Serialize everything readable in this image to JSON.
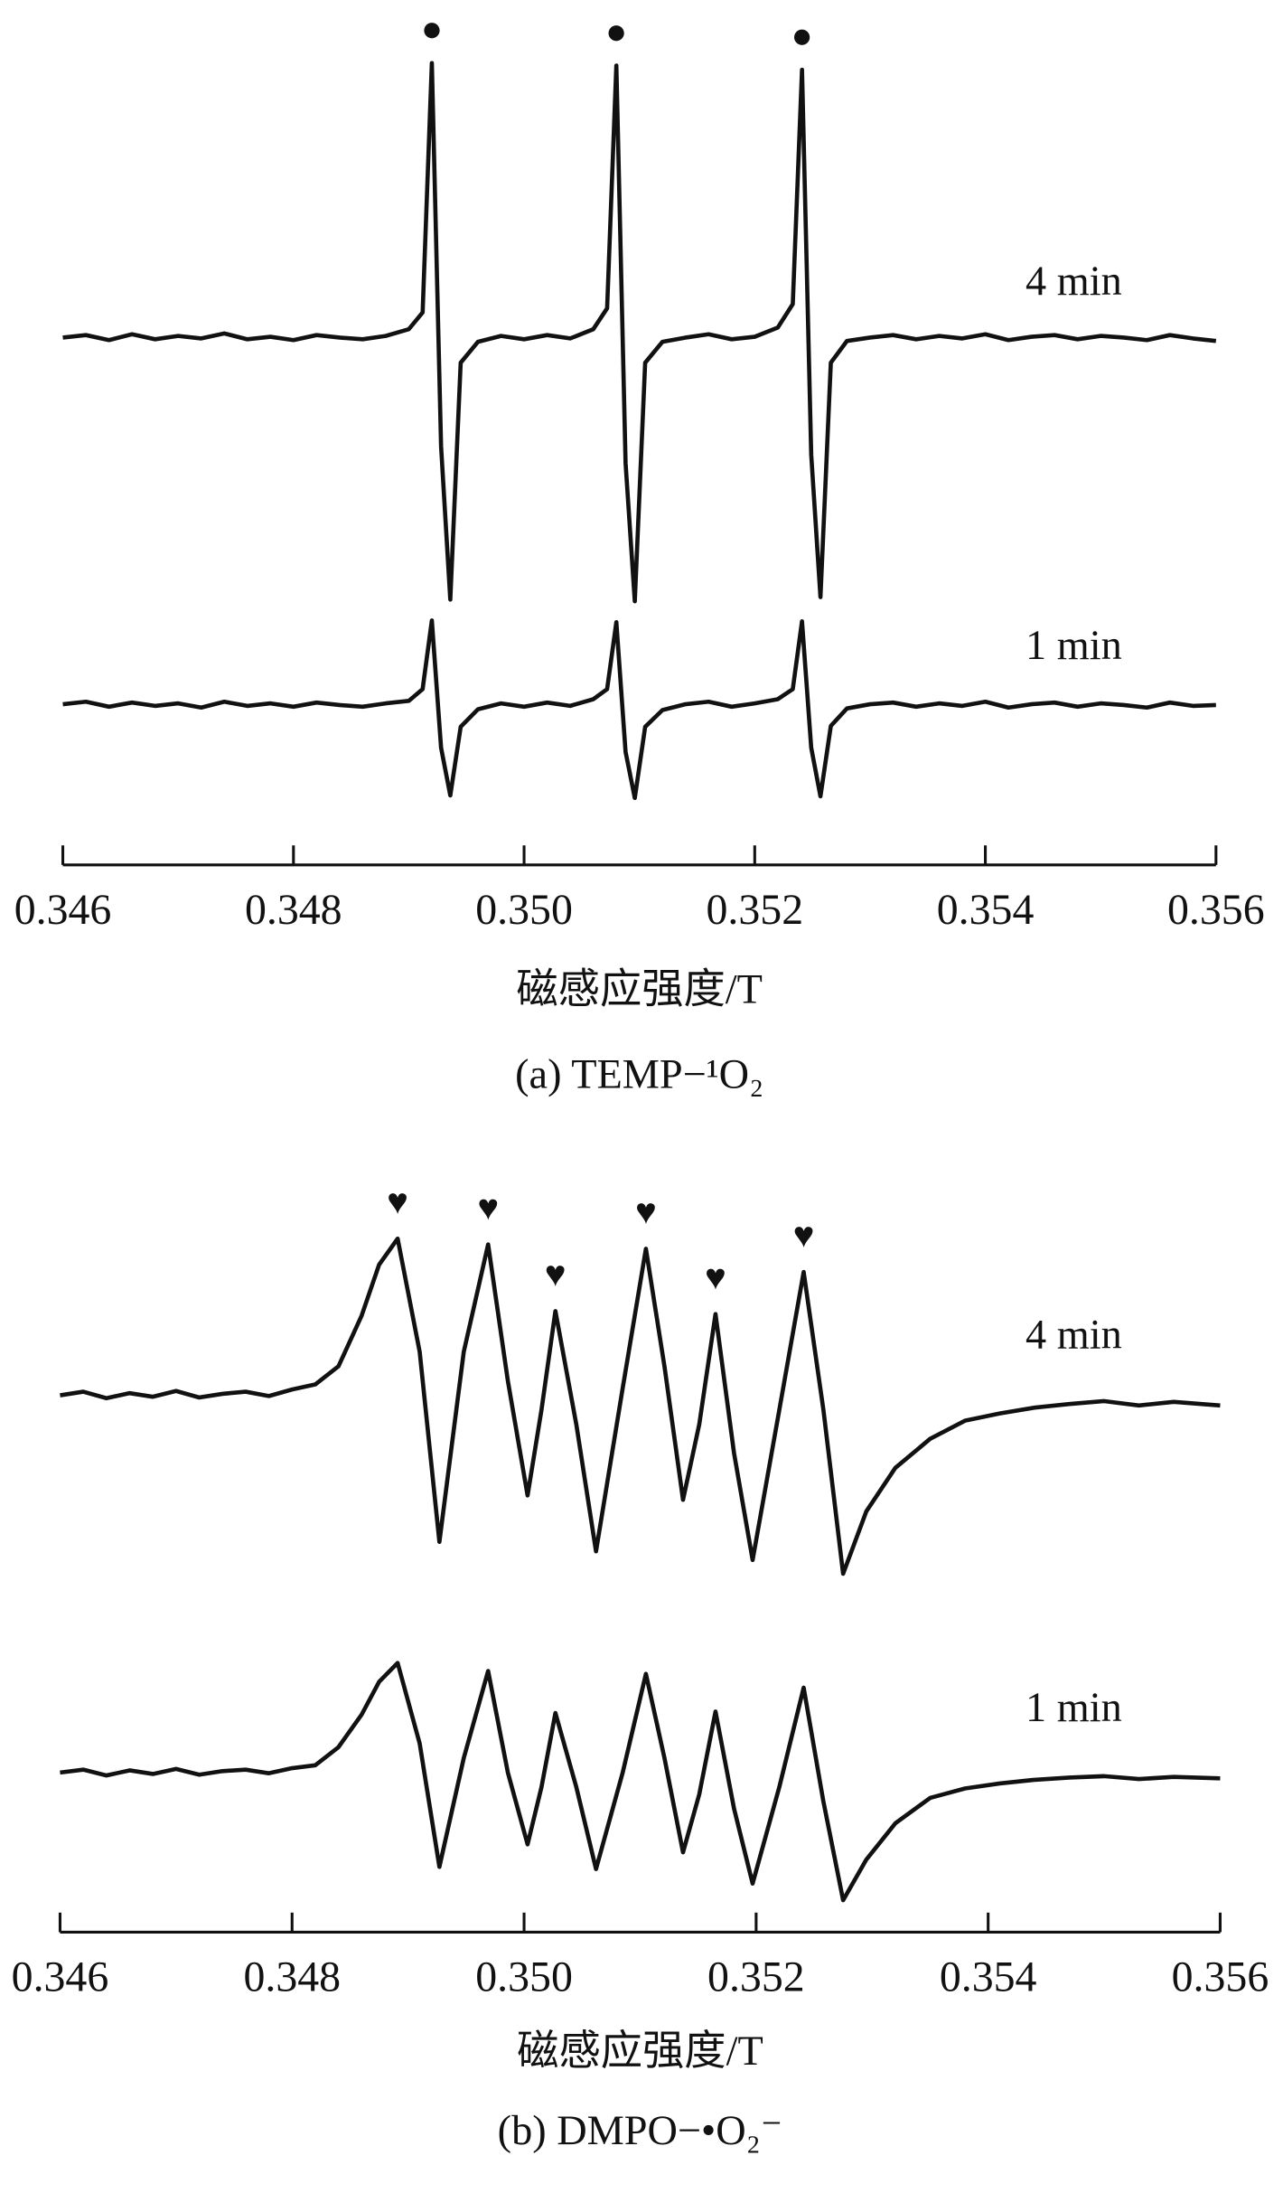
{
  "chart_data": [
    {
      "type": "line",
      "x": [
        0.346,
        0.3462,
        0.3464,
        0.3466,
        0.3468,
        0.347,
        0.3472,
        0.3474,
        0.3476,
        0.3478,
        0.348,
        0.3482,
        0.3484,
        0.3486,
        0.3488,
        0.349,
        0.34912,
        0.3492,
        0.34928,
        0.34936,
        0.34945,
        0.3496,
        0.3498,
        0.35,
        0.3502,
        0.3504,
        0.3506,
        0.35072,
        0.3508,
        0.35088,
        0.35096,
        0.35105,
        0.3512,
        0.3514,
        0.3516,
        0.3518,
        0.352,
        0.3522,
        0.35233,
        0.35241,
        0.35249,
        0.35257,
        0.35266,
        0.3528,
        0.353,
        0.3532,
        0.3534,
        0.3536,
        0.3538,
        0.354,
        0.3542,
        0.3544,
        0.3546,
        0.3548,
        0.355,
        0.3552,
        0.3554,
        0.3556,
        0.3558,
        0.356
      ],
      "series": [
        {
          "name": "4 min",
          "color": "#111111",
          "values": [
            63,
            63.3,
            62.7,
            63.4,
            62.8,
            63.2,
            62.9,
            63.5,
            62.8,
            63.1,
            62.7,
            63.3,
            63,
            62.8,
            63.2,
            64,
            66,
            95.8,
            50,
            31.7,
            60,
            62.5,
            63.2,
            62.8,
            63.3,
            62.9,
            64,
            66.5,
            95.5,
            48,
            31.5,
            60,
            62.5,
            63,
            63.4,
            62.8,
            63.1,
            64.2,
            67,
            95,
            49,
            32,
            60,
            62.6,
            63,
            63.3,
            62.8,
            63.2,
            62.9,
            63.4,
            62.7,
            63.1,
            63.3,
            62.8,
            63.2,
            63,
            62.7,
            63.3,
            62.9,
            62.6
          ]
        },
        {
          "name": "1 min",
          "color": "#111111",
          "values": [
            19.2,
            19.5,
            18.9,
            19.4,
            19,
            19.3,
            18.8,
            19.5,
            19,
            19.3,
            18.9,
            19.4,
            19.1,
            18.9,
            19.3,
            19.6,
            21,
            29.2,
            14,
            8.3,
            16.5,
            18.6,
            19.3,
            18.9,
            19.4,
            19,
            19.8,
            21,
            29,
            13.5,
            8,
            16.5,
            18.5,
            19.2,
            19.5,
            18.9,
            19.3,
            19.8,
            21,
            29.1,
            14,
            8.2,
            16.6,
            18.7,
            19.2,
            19.4,
            18.9,
            19.3,
            19,
            19.5,
            18.8,
            19.2,
            19.4,
            18.9,
            19.3,
            19.1,
            18.8,
            19.4,
            19,
            19.1
          ]
        }
      ],
      "xlim": [
        0.346,
        0.356
      ],
      "xticks": [
        0.346,
        0.348,
        {
          "value": 0.35,
          "label": "0.350"
        },
        0.352,
        0.354,
        0.356
      ],
      "ylim": [
        0,
        100
      ],
      "x_label": "磁感应强度/T",
      "caption": "(a) TEMP−¹O₂",
      "peak_markers": {
        "symbol": "●",
        "x": [
          0.3492,
          0.3508,
          0.35241
        ]
      }
    },
    {
      "type": "line",
      "x": [
        0.346,
        0.3462,
        0.3464,
        0.3466,
        0.3468,
        0.347,
        0.3472,
        0.3474,
        0.3476,
        0.3478,
        0.348,
        0.3482,
        0.3484,
        0.3486,
        0.34875,
        0.34891,
        0.3491,
        0.34927,
        0.34948,
        0.34969,
        0.34986,
        0.35003,
        0.35015,
        0.35027,
        0.35045,
        0.35062,
        0.35085,
        0.35105,
        0.35121,
        0.35137,
        0.35151,
        0.35165,
        0.35181,
        0.35197,
        0.3522,
        0.35241,
        0.35258,
        0.35275,
        0.35295,
        0.3532,
        0.3535,
        0.3538,
        0.3541,
        0.3544,
        0.3547,
        0.355,
        0.3553,
        0.3556,
        0.356
      ],
      "series": [
        {
          "name": "4 min",
          "color": "#111111",
          "values": [
            74,
            74.5,
            73.6,
            74.3,
            73.8,
            74.6,
            73.7,
            74.2,
            74.5,
            73.9,
            74.8,
            75.5,
            78,
            85,
            92,
            95.6,
            80,
            53.8,
            80,
            94.8,
            76,
            60.2,
            72,
            85.6,
            70,
            52.5,
            75,
            94.2,
            78,
            59.6,
            70,
            85.2,
            66,
            51.3,
            72,
            91,
            72,
            49.4,
            58,
            64,
            68,
            70.5,
            71.5,
            72.3,
            72.8,
            73.2,
            72.6,
            73.1,
            72.6
          ]
        },
        {
          "name": "1 min",
          "color": "#111111",
          "values": [
            22,
            22.4,
            21.6,
            22.3,
            21.8,
            22.5,
            21.7,
            22.2,
            22.4,
            21.9,
            22.6,
            23,
            25.5,
            30,
            34.5,
            37.1,
            26,
            9,
            24,
            36,
            22,
            12.1,
            20,
            30.2,
            20,
            8.7,
            22,
            35.6,
            24,
            11,
            19,
            30.4,
            17,
            6.7,
            20,
            33.7,
            18,
            4.4,
            10,
            15,
            18.5,
            19.8,
            20.5,
            21,
            21.3,
            21.5,
            21.1,
            21.4,
            21.2
          ]
        }
      ],
      "xlim": [
        0.346,
        0.356
      ],
      "xticks": [
        0.346,
        0.348,
        {
          "value": 0.35,
          "label": "0.350"
        },
        0.352,
        0.354,
        0.356
      ],
      "ylim": [
        0,
        100
      ],
      "x_label": "磁感应强度/T",
      "caption": "(b) DMPO−•O₂⁻",
      "peak_markers": {
        "symbol": "♥",
        "x": [
          0.34891,
          0.34969,
          0.35027,
          0.35105,
          0.35165,
          0.35241
        ]
      }
    }
  ]
}
